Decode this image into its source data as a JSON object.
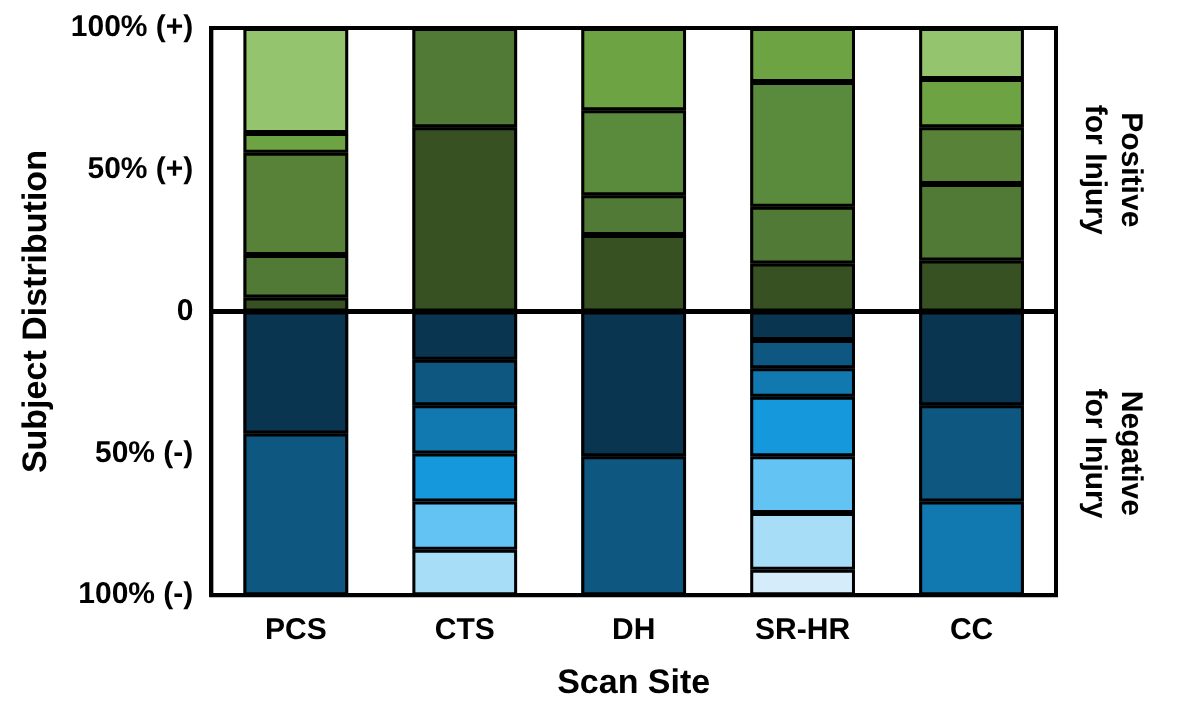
{
  "chart_data": {
    "type": "bar",
    "stacked": true,
    "xlabel": "Scan Site",
    "ylabel": "Subject Distribution",
    "categories": [
      "PCS",
      "CTS",
      "DH",
      "SR-HR",
      "CC"
    ],
    "ylim": [
      -100,
      100
    ],
    "yticks": [
      {
        "value": -100,
        "label": "100% (-)"
      },
      {
        "value": -50,
        "label": "50% (-)"
      },
      {
        "value": 0,
        "label": "0"
      },
      {
        "value": 50,
        "label": "50% (+)"
      },
      {
        "value": 100,
        "label": "100% (+)"
      }
    ],
    "series": [
      {
        "values": [
          5,
          65,
          27,
          17,
          18
        ],
        "colors": [
          "#375123",
          "#375123",
          "#375123",
          "#375123",
          "#375123"
        ]
      },
      {
        "values": [
          15,
          35,
          14,
          20,
          27
        ],
        "colors": [
          "#507a35",
          "#507a35",
          "#507a35",
          "#507a35",
          "#507a35"
        ]
      },
      {
        "values": [
          36,
          null,
          30,
          44,
          20
        ],
        "colors": [
          "#578238",
          null,
          "#5a8a3c",
          "#5a8a3c",
          "#578238"
        ]
      },
      {
        "values": [
          7,
          null,
          29,
          19,
          17
        ],
        "colors": [
          "#6ea344",
          null,
          "#6ea344",
          "#6ea344",
          "#6ea344"
        ]
      },
      {
        "values": [
          37,
          null,
          null,
          null,
          18
        ],
        "colors": [
          "#94c46e",
          null,
          null,
          null,
          "#94c46e"
        ]
      },
      {
        "values": [
          -43,
          -17,
          -51,
          -10,
          -33
        ],
        "colors": [
          "#0a3550",
          "#0a3550",
          "#0a3550",
          "#0a3550",
          "#0a3550"
        ]
      },
      {
        "values": [
          -57,
          -16,
          -49,
          -10,
          -34
        ],
        "colors": [
          "#0d5780",
          "#0d5780",
          "#0d5780",
          "#0d5780",
          "#0d5780"
        ]
      },
      {
        "values": [
          null,
          -17,
          null,
          -10,
          -33
        ],
        "colors": [
          null,
          "#1278b0",
          null,
          "#1278b0",
          "#1278b0"
        ]
      },
      {
        "values": [
          null,
          -17,
          null,
          -21,
          null
        ],
        "colors": [
          null,
          "#1599dc",
          null,
          "#1599dc",
          null
        ]
      },
      {
        "values": [
          null,
          -17,
          null,
          -20,
          null
        ],
        "colors": [
          null,
          "#63c3f2",
          null,
          "#63c3f2",
          null
        ]
      },
      {
        "values": [
          null,
          -16,
          null,
          -20,
          null
        ],
        "colors": [
          null,
          "#a7ddf7",
          null,
          "#a7ddf7",
          null
        ]
      },
      {
        "values": [
          null,
          null,
          null,
          -9,
          null
        ],
        "colors": [
          null,
          null,
          null,
          "#d5edfb",
          null
        ]
      }
    ],
    "ref_lines": [
      {
        "axis": "y",
        "value": 0,
        "color": "#000000"
      }
    ],
    "annotations": [
      "Positive for Injury",
      "Negative for Injury"
    ],
    "grid": false,
    "legend": false
  }
}
